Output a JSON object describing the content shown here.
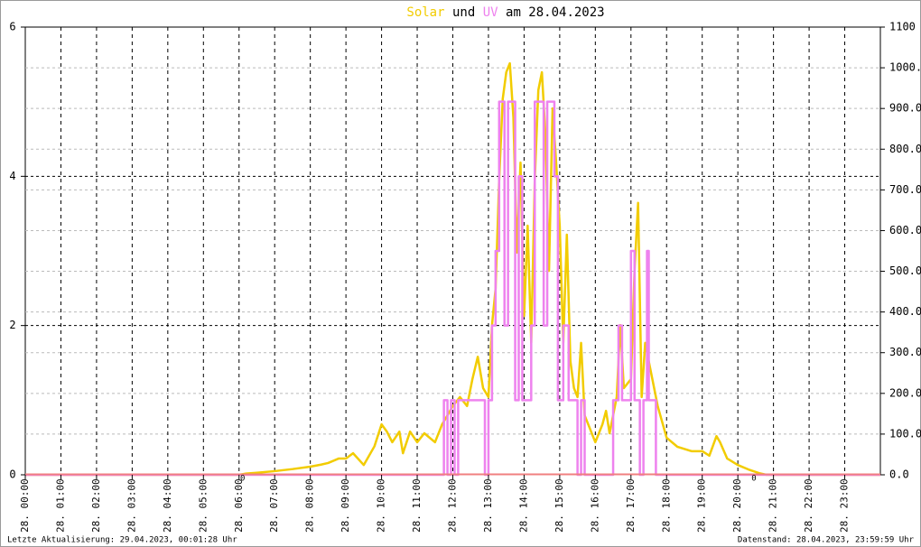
{
  "chart_data": {
    "type": "line",
    "title": [
      "Solar",
      "und",
      "UV",
      "am 28.04.2023"
    ],
    "footer_left": "Letzte Aktualisierung: 29.04.2023, 00:01:28 Uhr",
    "footer_right": "Datenstand: 28.04.2023, 23:59:59 Uhr",
    "xlim": [
      0,
      24
    ],
    "xticks": [
      {
        "value": 0,
        "label": "28. 00:00"
      },
      {
        "value": 1,
        "label": "28. 01:00"
      },
      {
        "value": 2,
        "label": "28. 02:00"
      },
      {
        "value": 3,
        "label": "28. 03:00"
      },
      {
        "value": 4,
        "label": "28. 04:00"
      },
      {
        "value": 5,
        "label": "28. 05:00"
      },
      {
        "value": 6,
        "label": "28. 06:00"
      },
      {
        "value": 7,
        "label": "28. 07:00"
      },
      {
        "value": 8,
        "label": "28. 08:00"
      },
      {
        "value": 9,
        "label": "28. 09:00"
      },
      {
        "value": 10,
        "label": "28. 10:00"
      },
      {
        "value": 11,
        "label": "28. 11:00"
      },
      {
        "value": 12,
        "label": "28. 12:00"
      },
      {
        "value": 13,
        "label": "28. 13:00"
      },
      {
        "value": 14,
        "label": "28. 14:00"
      },
      {
        "value": 15,
        "label": "28. 15:00"
      },
      {
        "value": 16,
        "label": "28. 16:00"
      },
      {
        "value": 17,
        "label": "28. 17:00"
      },
      {
        "value": 18,
        "label": "28. 18:00"
      },
      {
        "value": 19,
        "label": "28. 19:00"
      },
      {
        "value": 20,
        "label": "28. 20:00"
      },
      {
        "value": 21,
        "label": "28. 21:00"
      },
      {
        "value": 22,
        "label": "28. 22:00"
      },
      {
        "value": 23,
        "label": "28. 23:00"
      }
    ],
    "ylim": [
      0,
      6
    ],
    "yticks": [
      0,
      2,
      4,
      6
    ],
    "y2lim": [
      0,
      1100
    ],
    "y2ticks": [
      {
        "value": 0,
        "label": "0.0"
      },
      {
        "value": 100,
        "label": "100.0"
      },
      {
        "value": 200,
        "label": "200.0"
      },
      {
        "value": 300,
        "label": "300.0"
      },
      {
        "value": 400,
        "label": "400.0"
      },
      {
        "value": 500,
        "label": "500.0"
      },
      {
        "value": 600,
        "label": "600.0"
      },
      {
        "value": 700,
        "label": "700.0"
      },
      {
        "value": 800,
        "label": "800.0"
      },
      {
        "value": 900,
        "label": "900.0"
      },
      {
        "value": 1000,
        "label": "1000.0"
      },
      1100
    ],
    "grid": true,
    "annotations": [
      {
        "text": "0",
        "x": 6.1
      },
      {
        "text": "0",
        "x": 20.45
      }
    ],
    "series": [
      {
        "name": "Solar",
        "color": "#f2cc00",
        "axis": "y2",
        "x": [
          0,
          6.0,
          6.2,
          6.5,
          7.0,
          7.5,
          8.0,
          8.3,
          8.5,
          8.8,
          9.0,
          9.2,
          9.5,
          9.8,
          10.0,
          10.15,
          10.3,
          10.5,
          10.6,
          10.8,
          11.0,
          11.2,
          11.5,
          11.7,
          11.85,
          12.0,
          12.2,
          12.4,
          12.55,
          12.7,
          12.85,
          13.0,
          13.1,
          13.2,
          13.3,
          13.4,
          13.5,
          13.6,
          13.7,
          13.8,
          13.9,
          14.0,
          14.1,
          14.2,
          14.3,
          14.4,
          14.5,
          14.6,
          14.7,
          14.8,
          14.9,
          15.0,
          15.1,
          15.2,
          15.3,
          15.4,
          15.5,
          15.6,
          15.7,
          15.8,
          16.0,
          16.2,
          16.3,
          16.4,
          16.6,
          16.7,
          16.8,
          17.0,
          17.1,
          17.2,
          17.3,
          17.4,
          17.5,
          17.6,
          17.75,
          18.0,
          18.3,
          18.7,
          19.0,
          19.2,
          19.4,
          19.5,
          19.7,
          20.0,
          20.3,
          20.6,
          20.8,
          24
        ],
        "values": [
          0,
          0,
          3,
          5,
          9,
          14,
          20,
          25,
          29,
          40,
          40,
          53,
          24,
          70,
          124,
          106,
          80,
          106,
          53,
          106,
          80,
          102,
          80,
          124,
          146,
          169,
          191,
          169,
          235,
          290,
          213,
          191,
          368,
          457,
          723,
          923,
          989,
          1011,
          878,
          546,
          767,
          390,
          612,
          324,
          723,
          945,
          989,
          834,
          501,
          900,
          767,
          612,
          324,
          590,
          279,
          213,
          191,
          324,
          146,
          124,
          80,
          124,
          157,
          102,
          191,
          368,
          213,
          235,
          501,
          668,
          191,
          324,
          279,
          235,
          169,
          91,
          69,
          58,
          58,
          47,
          95,
          80,
          40,
          24,
          13,
          4,
          0,
          0
        ]
      },
      {
        "name": "UV",
        "color": "#ee82ee",
        "axis": "y",
        "x": [
          0,
          11.75,
          11.75,
          11.85,
          11.85,
          11.95,
          11.95,
          12.05,
          12.05,
          12.15,
          12.15,
          12.9,
          12.9,
          13.0,
          13.0,
          13.1,
          13.1,
          13.2,
          13.2,
          13.3,
          13.3,
          13.45,
          13.45,
          13.55,
          13.55,
          13.75,
          13.75,
          13.85,
          13.85,
          13.95,
          13.95,
          14.2,
          14.2,
          14.3,
          14.3,
          14.55,
          14.55,
          14.65,
          14.65,
          14.85,
          14.85,
          14.95,
          14.95,
          15.1,
          15.1,
          15.25,
          15.25,
          15.5,
          15.5,
          15.6,
          15.6,
          15.7,
          15.7,
          16.5,
          16.5,
          16.65,
          16.65,
          16.75,
          16.75,
          17.0,
          17.0,
          17.1,
          17.1,
          17.25,
          17.25,
          17.35,
          17.35,
          17.45,
          17.45,
          17.5,
          17.5,
          17.7,
          17.7,
          24
        ],
        "values": [
          0,
          0,
          1,
          1,
          0,
          0,
          1,
          1,
          0,
          0,
          1,
          1,
          0,
          0,
          1,
          1,
          2,
          2,
          3,
          3,
          5,
          5,
          2,
          2,
          5,
          5,
          1,
          1,
          4,
          4,
          1,
          1,
          2,
          2,
          5,
          5,
          2,
          2,
          5,
          5,
          4,
          4,
          1,
          1,
          2,
          2,
          1,
          1,
          0,
          0,
          1,
          1,
          0,
          0,
          1,
          1,
          2,
          2,
          1,
          1,
          3,
          3,
          1,
          1,
          0,
          0,
          1,
          1,
          3,
          3,
          1,
          1,
          0,
          0
        ]
      }
    ]
  }
}
